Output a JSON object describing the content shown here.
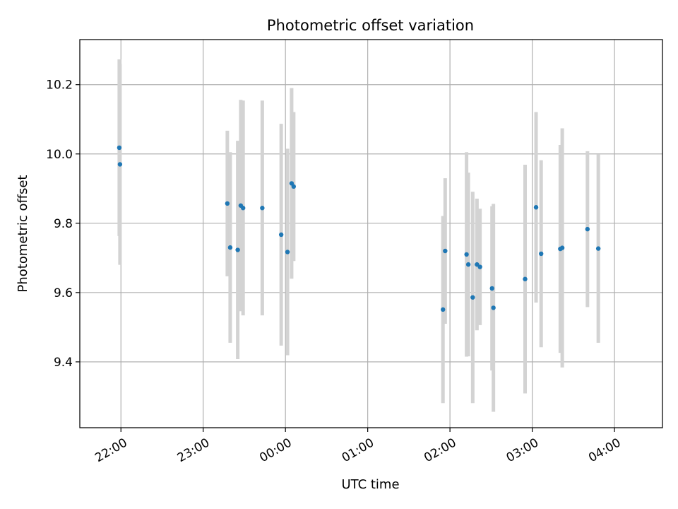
{
  "chart_data": {
    "type": "scatter",
    "title": "Photometric offset variation",
    "xlabel": "UTC time",
    "ylabel": "Photometric offset",
    "x_unit": "minutes",
    "x_ref_time": "22:00",
    "xlim": [
      -30,
      395
    ],
    "ylim": [
      9.21,
      10.33
    ],
    "grid": true,
    "x_ticks": [
      {
        "value": 0,
        "label": "22:00"
      },
      {
        "value": 60,
        "label": "23:00"
      },
      {
        "value": 120,
        "label": "00:00"
      },
      {
        "value": 180,
        "label": "01:00"
      },
      {
        "value": 240,
        "label": "02:00"
      },
      {
        "value": 300,
        "label": "03:00"
      },
      {
        "value": 360,
        "label": "04:00"
      }
    ],
    "y_ticks": [
      {
        "value": 9.4,
        "label": "9.4"
      },
      {
        "value": 9.6,
        "label": "9.6"
      },
      {
        "value": 9.8,
        "label": "9.8"
      },
      {
        "value": 10.0,
        "label": "10.0"
      },
      {
        "value": 10.2,
        "label": "10.2"
      }
    ],
    "colors": {
      "points": "#1f77b4",
      "errorbars": "#d3d3d3",
      "grid": "#b0b0b0"
    },
    "points": [
      {
        "x": -1.2,
        "y": 10.018,
        "err": 0.255
      },
      {
        "x": -0.7,
        "y": 9.97,
        "err": 0.29
      },
      {
        "x": 77.6,
        "y": 9.857,
        "err": 0.21
      },
      {
        "x": 79.7,
        "y": 9.73,
        "err": 0.275
      },
      {
        "x": 85.2,
        "y": 9.723,
        "err": 0.315
      },
      {
        "x": 87.4,
        "y": 9.851,
        "err": 0.305
      },
      {
        "x": 89.1,
        "y": 9.844,
        "err": 0.31
      },
      {
        "x": 103.1,
        "y": 9.844,
        "err": 0.31
      },
      {
        "x": 116.9,
        "y": 9.767,
        "err": 0.32
      },
      {
        "x": 121.5,
        "y": 9.717,
        "err": 0.298
      },
      {
        "x": 124.5,
        "y": 9.915,
        "err": 0.275
      },
      {
        "x": 126.0,
        "y": 9.906,
        "err": 0.215
      },
      {
        "x": 234.9,
        "y": 9.551,
        "err": 0.27
      },
      {
        "x": 236.5,
        "y": 9.72,
        "err": 0.21
      },
      {
        "x": 252.1,
        "y": 9.71,
        "err": 0.295
      },
      {
        "x": 253.4,
        "y": 9.681,
        "err": 0.265
      },
      {
        "x": 256.6,
        "y": 9.586,
        "err": 0.305
      },
      {
        "x": 259.7,
        "y": 9.681,
        "err": 0.19
      },
      {
        "x": 261.9,
        "y": 9.674,
        "err": 0.168
      },
      {
        "x": 270.7,
        "y": 9.612,
        "err": 0.237
      },
      {
        "x": 271.7,
        "y": 9.556,
        "err": 0.3
      },
      {
        "x": 294.8,
        "y": 9.639,
        "err": 0.33
      },
      {
        "x": 302.8,
        "y": 9.846,
        "err": 0.275
      },
      {
        "x": 306.5,
        "y": 9.712,
        "err": 0.27
      },
      {
        "x": 320.5,
        "y": 9.726,
        "err": 0.3
      },
      {
        "x": 321.9,
        "y": 9.729,
        "err": 0.345
      },
      {
        "x": 340.3,
        "y": 9.783,
        "err": 0.225
      },
      {
        "x": 348.2,
        "y": 9.727,
        "err": 0.272
      }
    ]
  }
}
